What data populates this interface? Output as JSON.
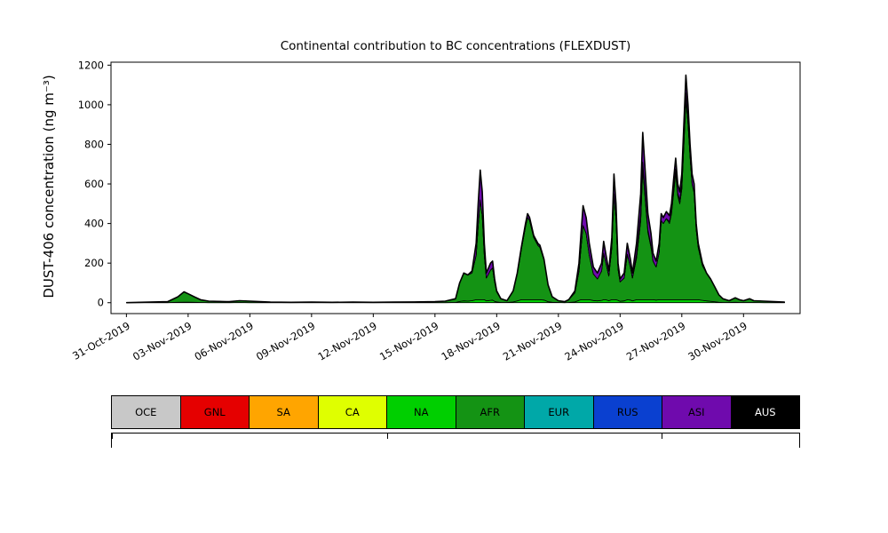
{
  "figure": {
    "title": "Continental contribution to BC concentrations (FLEXDUST)",
    "ylabel": "DUST-406 concentration (ng m⁻³)"
  },
  "chart_data": {
    "type": "area",
    "stacked": true,
    "title": "Continental contribution to BC concentrations (FLEXDUST)",
    "xlabel": "",
    "ylabel": "DUST-406 concentration (ng m⁻³)",
    "ylim": [
      0,
      1200
    ],
    "yticks": [
      0,
      200,
      400,
      600,
      800,
      1000,
      1200
    ],
    "xtick_positions_days": [
      0,
      3,
      6,
      9,
      12,
      15,
      18,
      21,
      24,
      27,
      30
    ],
    "xtick_labels": [
      "31-Oct-2019",
      "03-Nov-2019",
      "06-Nov-2019",
      "09-Nov-2019",
      "12-Nov-2019",
      "15-Nov-2019",
      "18-Nov-2019",
      "21-Nov-2019",
      "24-Nov-2019",
      "27-Nov-2019",
      "30-Nov-2019"
    ],
    "x_origin_date": "31-Oct-2019",
    "legend_position": "bottom",
    "grid": false,
    "series_order": [
      "OCE",
      "GNL",
      "SA",
      "CA",
      "NA",
      "AFR",
      "EUR",
      "RUS",
      "ASI",
      "AUS"
    ],
    "colors": {
      "OCE": "#c8c8c8",
      "GNL": "#e50000",
      "SA": "#ffa500",
      "CA": "#dfff00",
      "NA": "#00cf00",
      "AFR": "#149314",
      "EUR": "#00a8a8",
      "RUS": "#0a40d0",
      "ASI": "#6f0aad",
      "AUS": "#000000"
    },
    "x_days": [
      0,
      2,
      2.5,
      2.8,
      3,
      3.3,
      3.6,
      4,
      5,
      5.5,
      6,
      6.5,
      7,
      8,
      9,
      10,
      11,
      12,
      13,
      14,
      15,
      15.5,
      16,
      16.2,
      16.4,
      16.6,
      16.8,
      17,
      17.1,
      17.2,
      17.3,
      17.4,
      17.5,
      17.7,
      17.8,
      17.9,
      18,
      18.2,
      18.5,
      18.8,
      19,
      19.2,
      19.4,
      19.5,
      19.6,
      19.8,
      20,
      20.1,
      20.3,
      20.5,
      20.7,
      21,
      21.3,
      21.5,
      21.8,
      22,
      22.1,
      22.2,
      22.35,
      22.5,
      22.7,
      22.9,
      23.1,
      23.2,
      23.3,
      23.45,
      23.6,
      23.7,
      23.8,
      23.9,
      24,
      24.2,
      24.35,
      24.5,
      24.6,
      24.8,
      25,
      25.1,
      25.2,
      25.35,
      25.5,
      25.6,
      25.75,
      25.9,
      26,
      26.1,
      26.25,
      26.4,
      26.5,
      26.6,
      26.7,
      26.8,
      26.9,
      27,
      27.1,
      27.2,
      27.3,
      27.4,
      27.5,
      27.6,
      27.7,
      27.8,
      28,
      28.2,
      28.4,
      28.6,
      28.8,
      29,
      29.3,
      29.6,
      29.8,
      30,
      30.3,
      30.5,
      31,
      31.5,
      32
    ],
    "series": {
      "OCE": 0,
      "GNL": 0,
      "SA": 0,
      "CA": 0,
      "NA": [
        0,
        0,
        2,
        3,
        3,
        2,
        1,
        0,
        0,
        1,
        0,
        0,
        0,
        0,
        0,
        0,
        0,
        0,
        0,
        0,
        0,
        0,
        1,
        6,
        9,
        8,
        10,
        15,
        15,
        15,
        15,
        15,
        9,
        12,
        13,
        7,
        4,
        1,
        1,
        4,
        9,
        15,
        15,
        15,
        15,
        15,
        15,
        15,
        13,
        5,
        2,
        1,
        0,
        1,
        4,
        12,
        15,
        15,
        15,
        15,
        11,
        9,
        12,
        15,
        15,
        10,
        15,
        15,
        15,
        12,
        7,
        9,
        15,
        13,
        9,
        15,
        15,
        15,
        15,
        15,
        15,
        15,
        13,
        15,
        15,
        15,
        15,
        15,
        15,
        15,
        15,
        15,
        15,
        15,
        15,
        15,
        15,
        15,
        15,
        15,
        15,
        15,
        12,
        9,
        7,
        5,
        2,
        1,
        1,
        2,
        1,
        1,
        1,
        1,
        0,
        0,
        0
      ],
      "AFR": [
        0,
        5,
        28,
        52,
        42,
        28,
        14,
        8,
        5,
        9,
        8,
        5,
        3,
        2,
        3,
        2,
        3,
        2,
        3,
        4,
        5,
        8,
        19,
        94,
        141,
        132,
        140,
        225,
        375,
        505,
        425,
        225,
        116,
        153,
        162,
        98,
        51,
        19,
        9,
        56,
        136,
        255,
        370,
        415,
        400,
        315,
        275,
        265,
        202,
        85,
        28,
        9,
        5,
        14,
        46,
        148,
        265,
        375,
        335,
        225,
        134,
        111,
        148,
        235,
        190,
        125,
        265,
        535,
        405,
        158,
        98,
        116,
        230,
        167,
        116,
        210,
        400,
        665,
        535,
        340,
        265,
        195,
        167,
        240,
        400,
        385,
        410,
        385,
        435,
        535,
        640,
        525,
        485,
        560,
        780,
        1015,
        890,
        725,
        585,
        540,
        355,
        265,
        176,
        141,
        113,
        75,
        38,
        19,
        9,
        23,
        14,
        9,
        19,
        9,
        8,
        5,
        3
      ],
      "EUR": {
        "78": 10,
        "79": 15,
        "80": 10,
        "87": 10,
        "88": 15,
        "89": 25,
        "90": 20,
        "91": 15
      },
      "RUS": {
        "75": 20,
        "76": 35,
        "77": 30,
        "78": 20,
        "92": 20,
        "93": 25,
        "94": 35,
        "95": 30,
        "96": 20
      },
      "ASI": {
        "26": 10,
        "27": 60,
        "28": 110,
        "29": 150,
        "30": 120,
        "31": 60,
        "32": 25,
        "33": 35,
        "34": 35,
        "35": 15,
        "36": 5,
        "40": 5,
        "41": 10,
        "42": 15,
        "43": 20,
        "44": 15,
        "45": 10,
        "46": 10,
        "47": 10,
        "48": 5,
        "54": 10,
        "55": 40,
        "56": 70,
        "57": 100,
        "58": 80,
        "59": 60,
        "60": 35,
        "61": 30,
        "62": 40,
        "63": 60,
        "64": 45,
        "65": 25,
        "66": 50,
        "67": 100,
        "68": 80,
        "69": 30,
        "70": 15,
        "71": 25,
        "72": 55,
        "73": 40,
        "74": 25,
        "75": 55,
        "76": 100,
        "77": 150,
        "78": 120,
        "79": 80,
        "80": 60,
        "81": 40,
        "82": 30,
        "83": 45,
        "84": 35,
        "85": 30,
        "86": 35,
        "87": 30,
        "88": 35,
        "89": 45,
        "90": 55,
        "91": 45,
        "92": 40,
        "93": 50,
        "94": 70,
        "95": 90,
        "96": 75,
        "97": 60,
        "98": 50,
        "99": 45,
        "100": 30,
        "101": 20,
        "102": 12
      },
      "AUS": 0
    }
  },
  "legend": {
    "entries": [
      {
        "label": "OCE",
        "color": "#c8c8c8",
        "text_color": "#000000"
      },
      {
        "label": "GNL",
        "color": "#e50000",
        "text_color": "#000000"
      },
      {
        "label": "SA",
        "color": "#ffa500",
        "text_color": "#000000"
      },
      {
        "label": "CA",
        "color": "#dfff00",
        "text_color": "#000000"
      },
      {
        "label": "NA",
        "color": "#00cf00",
        "text_color": "#000000"
      },
      {
        "label": "AFR",
        "color": "#149314",
        "text_color": "#000000"
      },
      {
        "label": "EUR",
        "color": "#00a8a8",
        "text_color": "#000000"
      },
      {
        "label": "RUS",
        "color": "#0a40d0",
        "text_color": "#000000"
      },
      {
        "label": "ASI",
        "color": "#6f0aad",
        "text_color": "#000000"
      },
      {
        "label": "AUS",
        "color": "#000000",
        "text_color": "#ffffff"
      }
    ]
  }
}
